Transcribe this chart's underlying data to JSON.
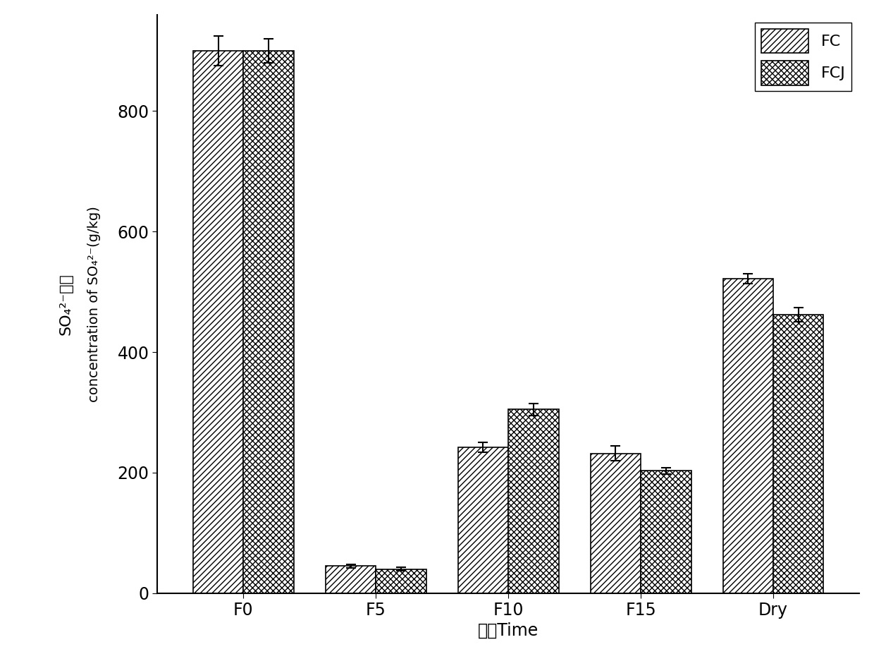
{
  "categories": [
    "F0",
    "F5",
    "F10",
    "F15",
    "Dry"
  ],
  "FC_values": [
    900,
    45,
    242,
    232,
    522
  ],
  "FCJ_values": [
    900,
    40,
    305,
    203,
    462
  ],
  "FC_errors": [
    25,
    3,
    8,
    12,
    8
  ],
  "FCJ_errors": [
    20,
    3,
    10,
    5,
    12
  ],
  "ylabel_line1": "SO₄²⁻浓度",
  "ylabel_line2": "concentration of SO₄²⁻(g/kg)",
  "xlabel": "时间Time",
  "legend_labels": [
    "FC",
    "FCJ"
  ],
  "ylim": [
    0,
    960
  ],
  "yticks": [
    0,
    200,
    400,
    600,
    800
  ],
  "bar_width": 0.38,
  "fc_hatch": "////",
  "fcj_hatch": "xxxx",
  "face_color": "white",
  "edge_color": "black",
  "background_color": "#ffffff"
}
